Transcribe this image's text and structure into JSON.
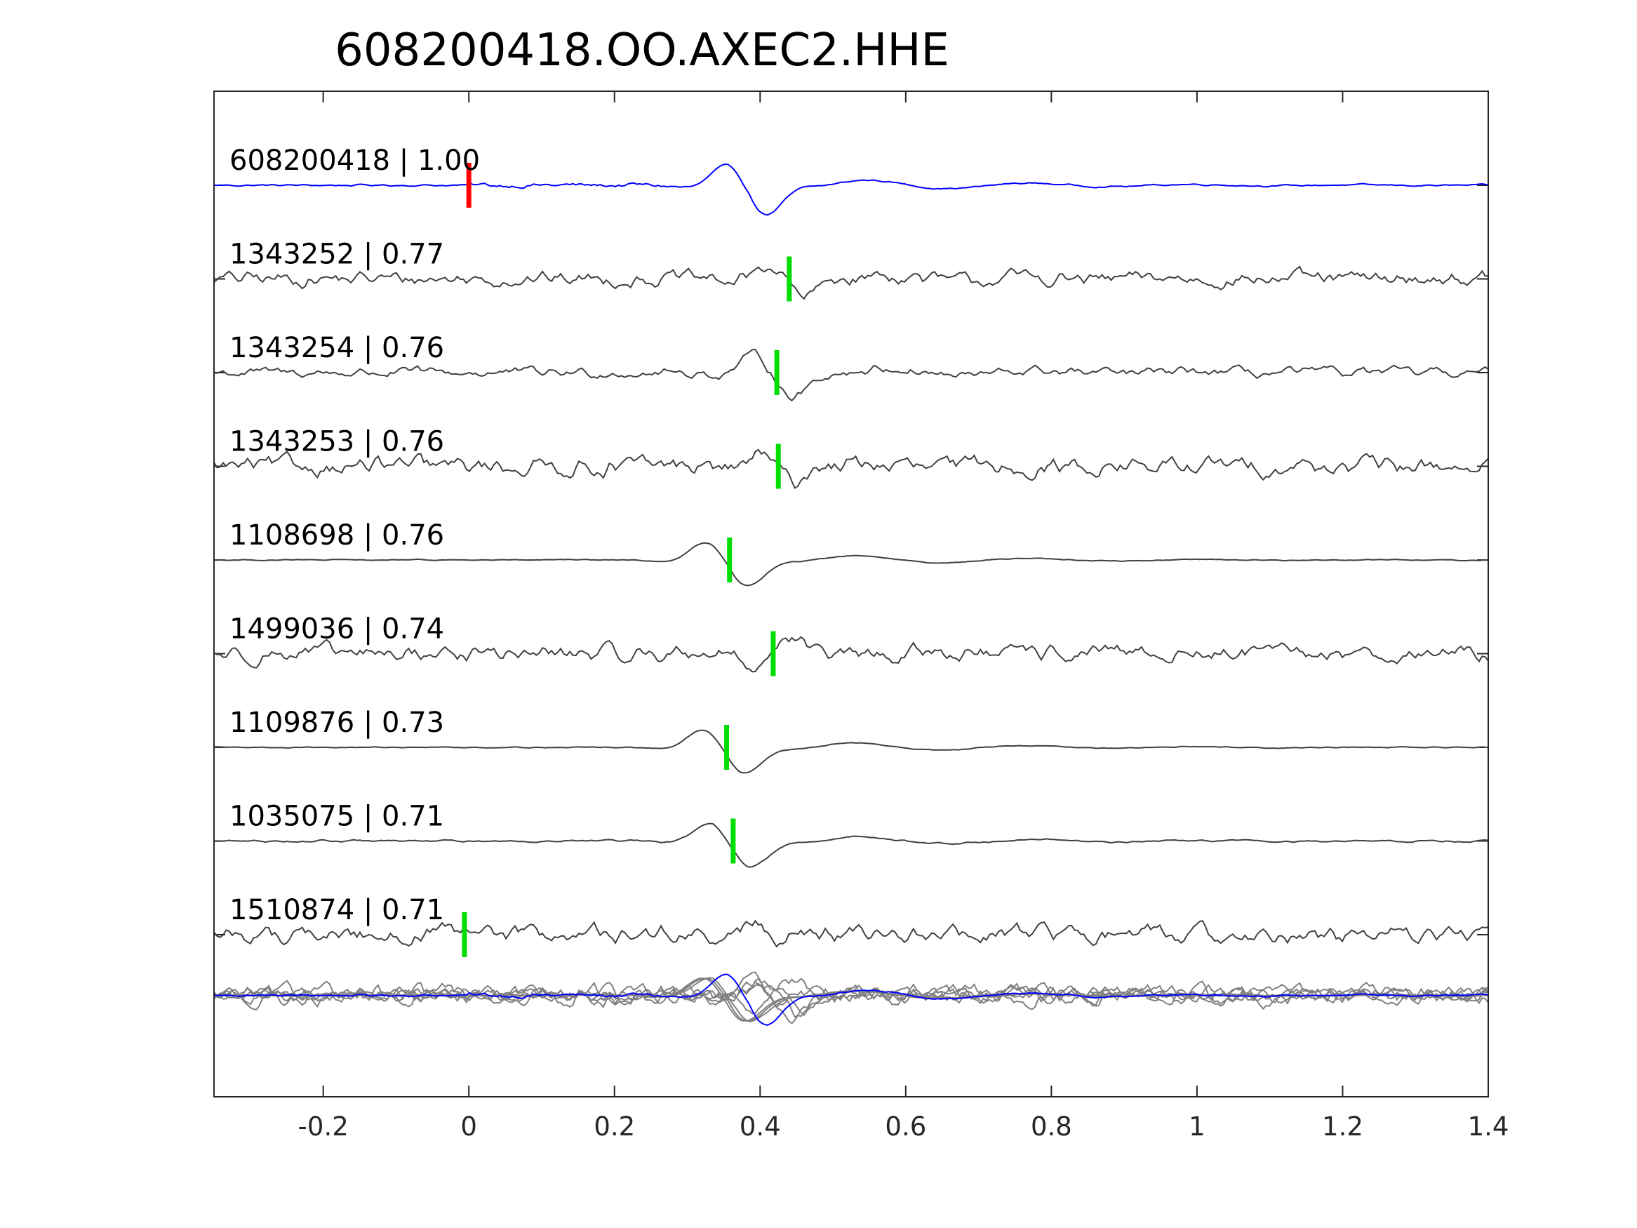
{
  "chart_data": {
    "type": "line",
    "title": "608200418.OO.AXEC2.HHE",
    "xlabel": "",
    "ylabel": "",
    "xlim": [
      -0.35,
      1.4
    ],
    "xticks": [
      -0.2,
      0,
      0.2,
      0.4,
      0.6,
      0.8,
      1,
      1.2,
      1.4
    ],
    "xtick_labels": [
      "-0.2",
      "0",
      "0.2",
      "0.4",
      "0.6",
      "0.8",
      "1",
      "1.2",
      "1.4"
    ],
    "grid": false,
    "colors": {
      "reference": "#0000ff",
      "template": "#404040",
      "stack": "#808080",
      "pick_reference": "#ff0000",
      "pick_template": "#00dd00",
      "axes": "#262626"
    },
    "series": [
      {
        "label": "608200418 | 1.00",
        "color": "reference",
        "pick": 0.0,
        "pick_color": "pick_reference",
        "sig_pick": 0.385,
        "noise": 0.05,
        "wave": 1.0,
        "freq": 7.5,
        "dir": -1,
        "pre_noise": 0.06,
        "dominant": true
      },
      {
        "label": "1343252 | 0.77",
        "color": "template",
        "pick": 0.44,
        "pick_color": "pick_template",
        "sig_pick": 0.44,
        "noise": 0.45,
        "wave": 0.6,
        "freq": 9,
        "dir": -1
      },
      {
        "label": "1343254 | 0.76",
        "color": "template",
        "pick": 0.423,
        "pick_color": "pick_template",
        "sig_pick": 0.423,
        "noise": 0.3,
        "wave": 0.8,
        "freq": 8,
        "dir": -1
      },
      {
        "label": "1343253 | 0.76",
        "color": "template",
        "pick": 0.425,
        "pick_color": "pick_template",
        "sig_pick": 0.425,
        "noise": 0.55,
        "wave": 0.5,
        "freq": 10,
        "dir": -1
      },
      {
        "label": "1108698 | 0.76",
        "color": "template",
        "pick": 0.358,
        "pick_color": "pick_template",
        "sig_pick": 0.358,
        "noise": 0.03,
        "wave": 0.9,
        "freq": 7,
        "dir": -1
      },
      {
        "label": "1499036 | 0.74",
        "color": "template",
        "pick": 0.418,
        "pick_color": "pick_template",
        "sig_pick": 0.418,
        "noise": 0.5,
        "wave": 0.6,
        "freq": 9,
        "dir": 1
      },
      {
        "label": "1109876 | 0.73",
        "color": "template",
        "pick": 0.354,
        "pick_color": "pick_template",
        "sig_pick": 0.354,
        "noise": 0.03,
        "wave": 0.9,
        "freq": 7,
        "dir": -1
      },
      {
        "label": "1035075 | 0.71",
        "color": "template",
        "pick": 0.363,
        "pick_color": "pick_template",
        "sig_pick": 0.363,
        "noise": 0.06,
        "wave": 0.9,
        "freq": 7,
        "dir": -1
      },
      {
        "label": "1510874 | 0.71",
        "color": "template",
        "pick": -0.006,
        "pick_color": "pick_template",
        "sig_pick": 0.37,
        "noise": 0.55,
        "wave": 0.3,
        "freq": 9,
        "dir": 1
      }
    ],
    "stack": {
      "label": "",
      "color": "stack",
      "overlay_color": "reference"
    }
  }
}
